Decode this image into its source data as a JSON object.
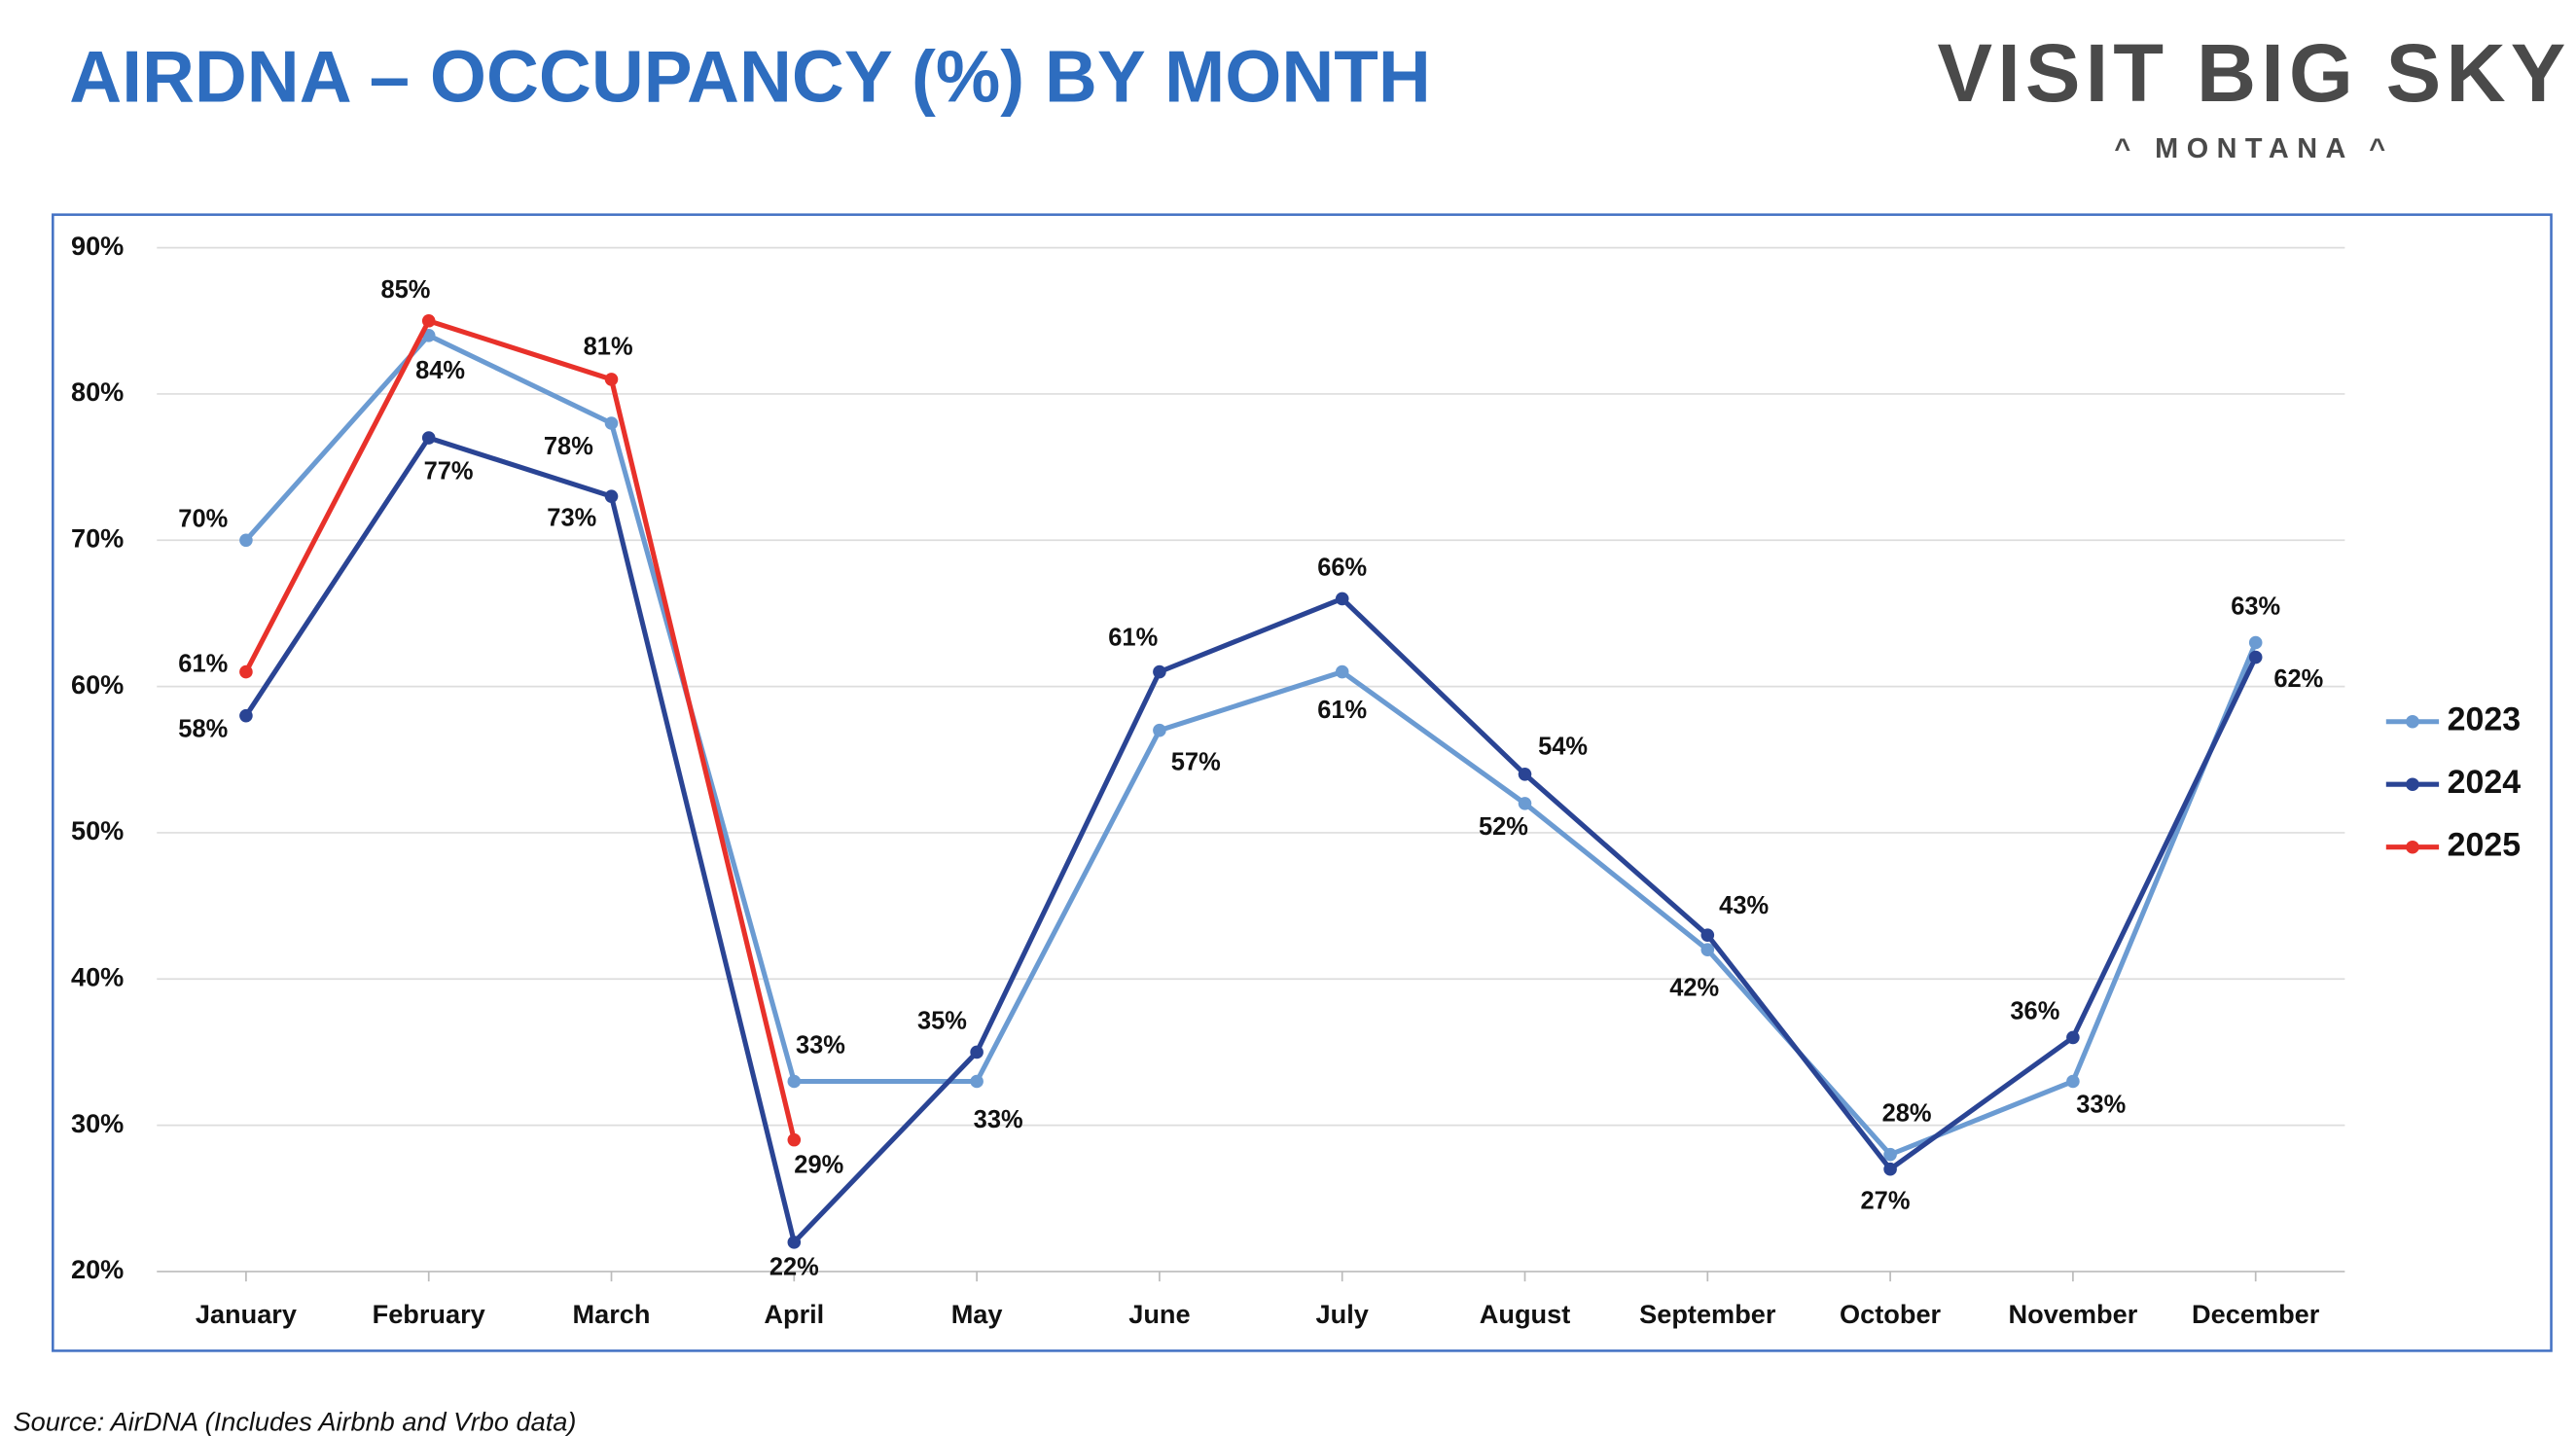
{
  "header": {
    "title": "AIRDNA – OCCUPANCY (%) BY MONTH",
    "logo": "VISIT BIG SKY",
    "logo_sub": "^ MONTANA ^"
  },
  "source": "Source: AirDNA (Includes Airbnb and Vrbo data)",
  "chart_data": {
    "type": "line",
    "categories": [
      "January",
      "February",
      "March",
      "April",
      "May",
      "June",
      "July",
      "August",
      "September",
      "October",
      "November",
      "December"
    ],
    "series": [
      {
        "name": "2023",
        "color": "#6b9bd2",
        "values": [
          70,
          84,
          78,
          33,
          33,
          57,
          61,
          52,
          42,
          28,
          33,
          63
        ],
        "value_labels": [
          "70%",
          "84%",
          "78%",
          "33%",
          "33%",
          "57%",
          "61%",
          "52%",
          "42%",
          "28%",
          "33%",
          "63%"
        ]
      },
      {
        "name": "2024",
        "color": "#2a4494",
        "values": [
          58,
          77,
          73,
          22,
          35,
          61,
          66,
          54,
          43,
          27,
          36,
          62
        ],
        "value_labels": [
          "58%",
          "77%",
          "73%",
          "22%",
          "35%",
          "61%",
          "66%",
          "54%",
          "43%",
          "27%",
          "36%",
          "62%"
        ]
      },
      {
        "name": "2025",
        "color": "#e8312a",
        "values": [
          61,
          85,
          81,
          29,
          null,
          null,
          null,
          null,
          null,
          null,
          null,
          null
        ],
        "value_labels": [
          "61%",
          "85%",
          "81%",
          "29%",
          null,
          null,
          null,
          null,
          null,
          null,
          null,
          null
        ]
      }
    ],
    "ylim": [
      20,
      90
    ],
    "yticks": [
      {
        "value": 20,
        "label": "20%"
      },
      {
        "value": 30,
        "label": "30%"
      },
      {
        "value": 40,
        "label": "40%"
      },
      {
        "value": 50,
        "label": "50%"
      },
      {
        "value": 60,
        "label": "60%"
      },
      {
        "value": 70,
        "label": "70%"
      },
      {
        "value": 80,
        "label": "80%"
      },
      {
        "value": 90,
        "label": "90%"
      }
    ],
    "grid": true,
    "legend": "right"
  }
}
